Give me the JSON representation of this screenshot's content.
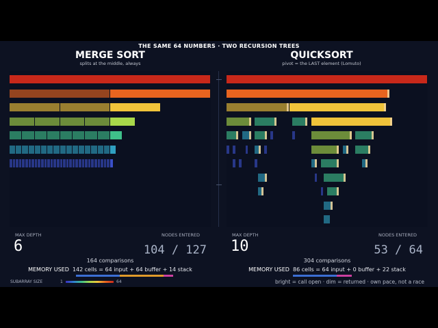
{
  "header": {
    "title": "THE SAME 64 NUMBERS  ·  TWO RECURSION TREES"
  },
  "merge": {
    "title": "MERGE SORT",
    "subtitle": "splits at the middle, always",
    "max_depth_label": "MAX DEPTH",
    "max_depth": "6",
    "nodes_label": "NODES ENTERED",
    "nodes": "104 / 127",
    "comparisons": "164 comparisons",
    "memory_key": "MEMORY USED",
    "memory_value": "142 cells  =  64 input + 64 buffer + 14 stack"
  },
  "quick": {
    "title": "QUICKSORT",
    "subtitle": "pivot = the LAST element (Lomuto)",
    "max_depth_label": "MAX DEPTH",
    "max_depth": "10",
    "nodes_label": "NODES ENTERED",
    "nodes": "53 / 64",
    "comparisons": "304 comparisons",
    "memory_key": "MEMORY USED",
    "memory_value": "86 cells  =  64 input + 0 buffer + 22 stack"
  },
  "legend": {
    "label": "SUBARRAY SIZE",
    "min": "1",
    "max": "64"
  },
  "footer": "bright = call open  ·  dim = returned  ·  own pace, not a race",
  "colors": {
    "size64": "#c8281a",
    "size32": "#e8641f",
    "size16": "#f0c33a",
    "size8": "#a8d84a",
    "size4": "#3fc08a",
    "size2": "#2f9fc0",
    "size1": "#3a4fc8",
    "background": "#0d1222",
    "pivot": "#f2d39a"
  }
}
